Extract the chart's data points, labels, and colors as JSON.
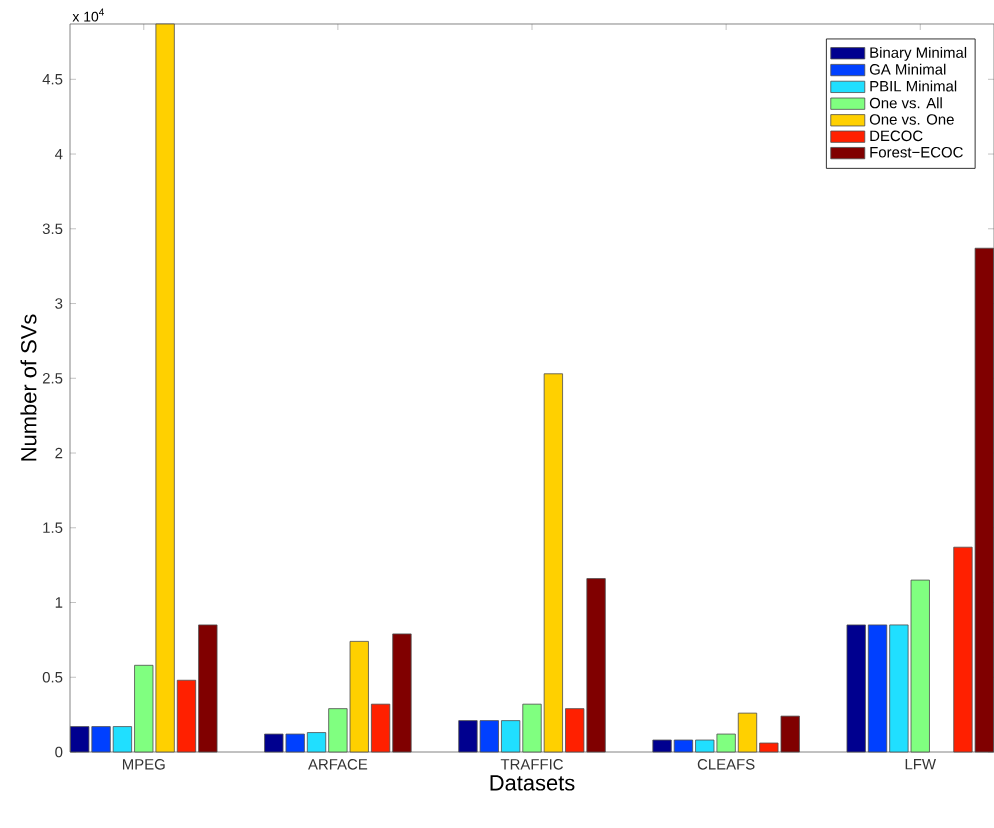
{
  "chart_data": {
    "type": "bar",
    "categories": [
      "MPEG",
      "ARFACE",
      "TRAFFIC",
      "CLEAFS",
      "LFW"
    ],
    "xlabel": "Datasets",
    "ylabel": "Number of SVs",
    "annotations": [
      "x 10$^{4}$"
    ],
    "ylim": [
      0,
      4.87
    ],
    "yticks": [
      0,
      0.5,
      1,
      1.5,
      2,
      2.5,
      3,
      3.5,
      4,
      4.5
    ],
    "legend": "top right",
    "series": [
      {
        "name": "Binary Minimal",
        "color": "#00008f",
        "values": [
          0.17,
          0.12,
          0.21,
          0.08,
          0.85
        ]
      },
      {
        "name": "GA Minimal",
        "color": "#0040ff",
        "values": [
          0.17,
          0.12,
          0.21,
          0.08,
          0.85
        ]
      },
      {
        "name": "PBIL Minimal",
        "color": "#20dfff",
        "values": [
          0.17,
          0.13,
          0.21,
          0.08,
          0.85
        ]
      },
      {
        "name": "One vs. All",
        "color": "#80ff80",
        "values": [
          0.58,
          0.29,
          0.32,
          0.12,
          1.15
        ]
      },
      {
        "name": "One vs. One",
        "color": "#ffd000",
        "values": [
          4.87,
          0.74,
          2.53,
          0.26,
          null
        ]
      },
      {
        "name": "DECOC",
        "color": "#ff2000",
        "values": [
          0.48,
          0.32,
          0.29,
          0.06,
          1.37
        ]
      },
      {
        "name": "Forest−ECOC",
        "color": "#800000",
        "values": [
          0.85,
          0.79,
          1.16,
          0.24,
          3.37
        ]
      }
    ]
  }
}
